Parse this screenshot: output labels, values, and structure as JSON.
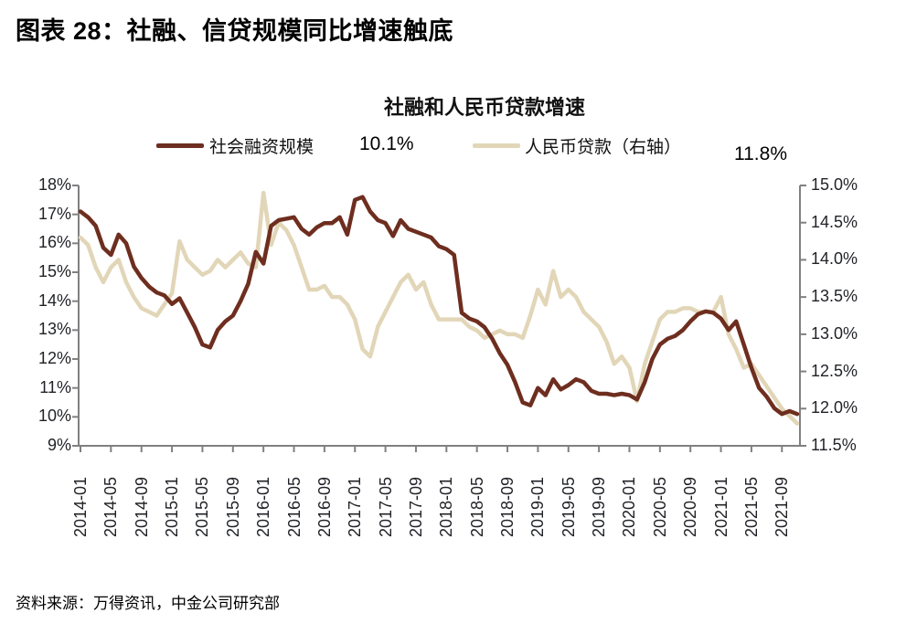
{
  "figure": {
    "title": "图表 28：社融、信贷规模同比增速触底",
    "source": "资料来源：万得资讯，中金公司研究部"
  },
  "chart_data": {
    "type": "line",
    "title": "社融和人民币贷款增速",
    "grid": false,
    "legend_position": "top",
    "x": [
      "2014-01",
      "2014-02",
      "2014-03",
      "2014-04",
      "2014-05",
      "2014-06",
      "2014-07",
      "2014-08",
      "2014-09",
      "2014-10",
      "2014-11",
      "2014-12",
      "2015-01",
      "2015-02",
      "2015-03",
      "2015-04",
      "2015-05",
      "2015-06",
      "2015-07",
      "2015-08",
      "2015-09",
      "2015-10",
      "2015-11",
      "2015-12",
      "2016-01",
      "2016-02",
      "2016-03",
      "2016-04",
      "2016-05",
      "2016-06",
      "2016-07",
      "2016-08",
      "2016-09",
      "2016-10",
      "2016-11",
      "2016-12",
      "2017-01",
      "2017-02",
      "2017-03",
      "2017-04",
      "2017-05",
      "2017-06",
      "2017-07",
      "2017-08",
      "2017-09",
      "2017-10",
      "2017-11",
      "2017-12",
      "2018-01",
      "2018-02",
      "2018-03",
      "2018-04",
      "2018-05",
      "2018-06",
      "2018-07",
      "2018-08",
      "2018-09",
      "2018-10",
      "2018-11",
      "2018-12",
      "2019-01",
      "2019-02",
      "2019-03",
      "2019-04",
      "2019-05",
      "2019-06",
      "2019-07",
      "2019-08",
      "2019-09",
      "2019-10",
      "2019-11",
      "2019-12",
      "2020-01",
      "2020-02",
      "2020-03",
      "2020-04",
      "2020-05",
      "2020-06",
      "2020-07",
      "2020-08",
      "2020-09",
      "2020-10",
      "2020-11",
      "2020-12",
      "2021-01",
      "2021-02",
      "2021-03",
      "2021-04",
      "2021-05",
      "2021-06",
      "2021-07",
      "2021-08",
      "2021-09",
      "2021-10",
      "2021-11"
    ],
    "x_tick_labels": [
      "2014-01",
      "2014-05",
      "2014-09",
      "2015-01",
      "2015-05",
      "2015-09",
      "2016-01",
      "2016-05",
      "2016-09",
      "2017-01",
      "2017-05",
      "2017-09",
      "2018-01",
      "2018-05",
      "2018-09",
      "2019-01",
      "2019-05",
      "2019-09",
      "2020-01",
      "2020-05",
      "2020-09",
      "2021-01",
      "2021-05",
      "2021-09"
    ],
    "left_axis": {
      "min": 9,
      "max": 18,
      "ticks": [
        "18%",
        "17%",
        "16%",
        "15%",
        "14%",
        "13%",
        "12%",
        "11%",
        "10%",
        "9%"
      ]
    },
    "right_axis": {
      "min": 11.5,
      "max": 15.0,
      "ticks": [
        "15.0%",
        "14.5%",
        "14.0%",
        "13.5%",
        "13.0%",
        "12.5%",
        "12.0%",
        "11.5%"
      ]
    },
    "series": [
      {
        "name": "社会融资规模",
        "axis": "left",
        "color": "#6E2E1F",
        "latest_label": "10.1%",
        "values": [
          17.1,
          16.9,
          16.6,
          15.85,
          15.6,
          16.3,
          16.0,
          15.2,
          14.8,
          14.5,
          14.3,
          14.2,
          13.9,
          14.1,
          13.6,
          13.1,
          12.5,
          12.4,
          13.0,
          13.3,
          13.5,
          14.0,
          14.6,
          15.7,
          15.3,
          16.6,
          16.8,
          16.85,
          16.9,
          16.5,
          16.3,
          16.55,
          16.7,
          16.7,
          16.9,
          16.3,
          17.5,
          17.6,
          17.1,
          16.8,
          16.7,
          16.25,
          16.8,
          16.5,
          16.4,
          16.3,
          16.2,
          15.9,
          15.8,
          15.6,
          13.6,
          13.4,
          13.3,
          13.1,
          12.7,
          12.2,
          11.8,
          11.2,
          10.5,
          10.4,
          11.0,
          10.75,
          11.3,
          10.95,
          11.1,
          11.3,
          11.2,
          10.9,
          10.8,
          10.8,
          10.75,
          10.8,
          10.75,
          10.6,
          11.2,
          12.0,
          12.5,
          12.7,
          12.8,
          13.0,
          13.3,
          13.55,
          13.65,
          13.6,
          13.4,
          13.0,
          13.3,
          12.5,
          11.7,
          11.0,
          10.7,
          10.3,
          10.1,
          10.2,
          10.1
        ]
      },
      {
        "name": "人民币贷款（右轴）",
        "axis": "right",
        "color": "#E2D6B8",
        "latest_label": "11.8%",
        "values": [
          14.3,
          14.2,
          13.9,
          13.7,
          13.9,
          14.0,
          13.7,
          13.5,
          13.35,
          13.3,
          13.25,
          13.4,
          13.55,
          14.25,
          14.0,
          13.9,
          13.8,
          13.85,
          14.0,
          13.9,
          14.0,
          14.1,
          13.95,
          13.9,
          14.9,
          14.2,
          14.5,
          14.4,
          14.2,
          13.9,
          13.6,
          13.6,
          13.65,
          13.5,
          13.5,
          13.4,
          13.2,
          12.8,
          12.7,
          13.1,
          13.3,
          13.5,
          13.7,
          13.8,
          13.6,
          13.7,
          13.4,
          13.2,
          13.2,
          13.2,
          13.2,
          13.1,
          13.05,
          12.95,
          13.0,
          13.05,
          13.0,
          13.0,
          12.95,
          13.25,
          13.6,
          13.4,
          13.85,
          13.5,
          13.6,
          13.5,
          13.3,
          13.2,
          13.1,
          12.9,
          12.6,
          12.7,
          12.55,
          12.1,
          12.6,
          12.9,
          13.2,
          13.3,
          13.3,
          13.35,
          13.35,
          13.3,
          13.3,
          13.3,
          13.5,
          13.0,
          12.8,
          12.55,
          12.6,
          12.45,
          12.3,
          12.15,
          12.0,
          11.9,
          11.8
        ]
      }
    ]
  }
}
